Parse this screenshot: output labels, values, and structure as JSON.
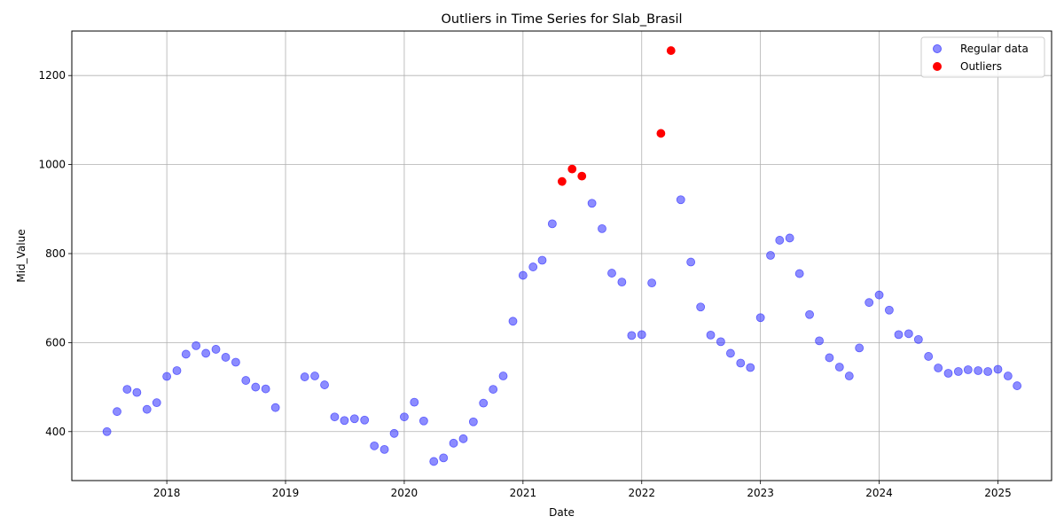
{
  "chart_data": {
    "type": "scatter",
    "title": "Outliers in Time Series for Slab_Brasil",
    "xlabel": "Date",
    "ylabel": "Mid_Value",
    "xlim": [
      "2017-03-15",
      "2025-06-15"
    ],
    "ylim": [
      290,
      1300
    ],
    "x_ticks": [
      "2018",
      "2019",
      "2020",
      "2021",
      "2022",
      "2023",
      "2024",
      "2025"
    ],
    "y_ticks": [
      400,
      600,
      800,
      1000,
      1200
    ],
    "grid": true,
    "legend_position": "top-right",
    "colors": {
      "regular": "#4040ff",
      "outliers": "#ff0000"
    },
    "series": [
      {
        "name": "Regular data",
        "points": [
          [
            "2017-07-01",
            400
          ],
          [
            "2017-08-01",
            445
          ],
          [
            "2017-09-01",
            495
          ],
          [
            "2017-10-01",
            488
          ],
          [
            "2017-11-01",
            450
          ],
          [
            "2017-12-01",
            465
          ],
          [
            "2018-01-01",
            524
          ],
          [
            "2018-02-01",
            537
          ],
          [
            "2018-03-01",
            574
          ],
          [
            "2018-04-01",
            593
          ],
          [
            "2018-05-01",
            576
          ],
          [
            "2018-06-01",
            585
          ],
          [
            "2018-07-01",
            567
          ],
          [
            "2018-08-01",
            556
          ],
          [
            "2018-09-01",
            515
          ],
          [
            "2018-10-01",
            500
          ],
          [
            "2018-11-01",
            496
          ],
          [
            "2018-12-01",
            454
          ],
          [
            "2019-03-01",
            523
          ],
          [
            "2019-04-01",
            525
          ],
          [
            "2019-05-01",
            505
          ],
          [
            "2019-06-01",
            433
          ],
          [
            "2019-07-01",
            425
          ],
          [
            "2019-08-01",
            429
          ],
          [
            "2019-09-01",
            426
          ],
          [
            "2019-10-01",
            368
          ],
          [
            "2019-11-01",
            360
          ],
          [
            "2019-12-01",
            396
          ],
          [
            "2020-01-01",
            433
          ],
          [
            "2020-02-01",
            466
          ],
          [
            "2020-03-01",
            424
          ],
          [
            "2020-04-01",
            333
          ],
          [
            "2020-05-01",
            341
          ],
          [
            "2020-06-01",
            374
          ],
          [
            "2020-07-01",
            384
          ],
          [
            "2020-08-01",
            422
          ],
          [
            "2020-09-01",
            464
          ],
          [
            "2020-10-01",
            495
          ],
          [
            "2020-11-01",
            525
          ],
          [
            "2020-12-01",
            648
          ],
          [
            "2021-01-01",
            751
          ],
          [
            "2021-02-01",
            770
          ],
          [
            "2021-03-01",
            785
          ],
          [
            "2021-04-01",
            867
          ],
          [
            "2021-08-01",
            913
          ],
          [
            "2021-09-01",
            856
          ],
          [
            "2021-10-01",
            756
          ],
          [
            "2021-11-01",
            736
          ],
          [
            "2021-12-01",
            616
          ],
          [
            "2022-01-01",
            618
          ],
          [
            "2022-02-01",
            734
          ],
          [
            "2022-05-01",
            921
          ],
          [
            "2022-06-01",
            781
          ],
          [
            "2022-07-01",
            680
          ],
          [
            "2022-08-01",
            617
          ],
          [
            "2022-09-01",
            602
          ],
          [
            "2022-10-01",
            576
          ],
          [
            "2022-11-01",
            554
          ],
          [
            "2022-12-01",
            544
          ],
          [
            "2023-01-01",
            656
          ],
          [
            "2023-02-01",
            796
          ],
          [
            "2023-03-01",
            830
          ],
          [
            "2023-04-01",
            835
          ],
          [
            "2023-05-01",
            755
          ],
          [
            "2023-06-01",
            663
          ],
          [
            "2023-07-01",
            604
          ],
          [
            "2023-08-01",
            566
          ],
          [
            "2023-09-01",
            545
          ],
          [
            "2023-10-01",
            525
          ],
          [
            "2023-11-01",
            588
          ],
          [
            "2023-12-01",
            690
          ],
          [
            "2024-01-01",
            707
          ],
          [
            "2024-02-01",
            673
          ],
          [
            "2024-03-01",
            618
          ],
          [
            "2024-04-01",
            620
          ],
          [
            "2024-05-01",
            607
          ],
          [
            "2024-06-01",
            569
          ],
          [
            "2024-07-01",
            543
          ],
          [
            "2024-08-01",
            531
          ],
          [
            "2024-09-01",
            535
          ],
          [
            "2024-10-01",
            539
          ],
          [
            "2024-11-01",
            537
          ],
          [
            "2024-12-01",
            535
          ],
          [
            "2025-01-01",
            540
          ],
          [
            "2025-02-01",
            525
          ],
          [
            "2025-03-01",
            503
          ]
        ]
      },
      {
        "name": "Outliers",
        "points": [
          [
            "2021-05-01",
            962
          ],
          [
            "2021-06-01",
            990
          ],
          [
            "2021-07-01",
            974
          ],
          [
            "2022-03-01",
            1070
          ],
          [
            "2022-04-01",
            1256
          ]
        ]
      }
    ]
  }
}
